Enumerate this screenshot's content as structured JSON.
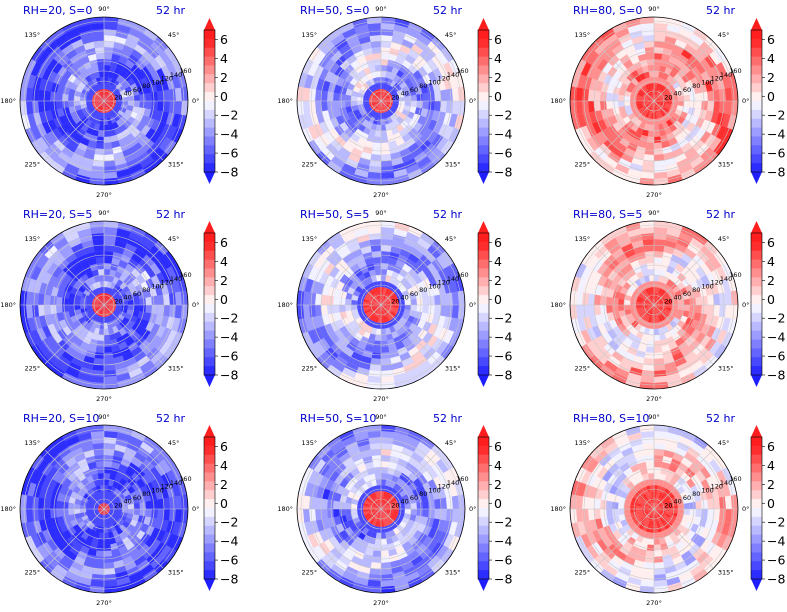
{
  "figure": {
    "panel_time": "52 hr",
    "colorbar": {
      "ticks": [
        "6",
        "4",
        "2",
        "0",
        "−2",
        "−4",
        "−6",
        "−8"
      ],
      "levels": [
        -8,
        -7,
        -6,
        -5,
        -4,
        -3,
        -2,
        -1,
        0,
        1,
        2,
        3,
        4,
        5,
        6,
        7
      ],
      "colors": {
        "negative_max": "#1e1eff",
        "positive_max": "#ff1e1e",
        "zero": "#ffffff"
      }
    },
    "polar_axes": {
      "angle_labels": [
        "90°",
        "45°",
        "0°",
        "315°",
        "270°",
        "225°",
        "180°",
        "135°"
      ],
      "radial_labels": [
        "20",
        "40",
        "60",
        "80",
        "100",
        "120",
        "140",
        "160"
      ]
    },
    "title_color": "#0000cc"
  },
  "chart_data": [
    {
      "type": "heatmap",
      "title": "RH=20, S=0",
      "time_label": "52 hr",
      "projection": "polar",
      "zlim": [
        -8,
        7
      ],
      "center_sign": "positive",
      "field_sign": "negative",
      "mean_level": -5.0,
      "core_radius": 0.12
    },
    {
      "type": "heatmap",
      "title": "RH=50, S=0",
      "time_label": "52 hr",
      "projection": "polar",
      "zlim": [
        -8,
        7
      ],
      "center_sign": "positive",
      "field_sign": "negative",
      "mean_level": -2.5,
      "core_radius": 0.16
    },
    {
      "type": "heatmap",
      "title": "RH=80, S=0",
      "time_label": "52 hr",
      "projection": "polar",
      "zlim": [
        -8,
        7
      ],
      "center_sign": "positive",
      "field_sign": "positive",
      "mean_level": 2.5,
      "core_radius": 0.2
    },
    {
      "type": "heatmap",
      "title": "RH=20, S=5",
      "time_label": "52 hr",
      "projection": "polar",
      "zlim": [
        -8,
        7
      ],
      "center_sign": "positive",
      "field_sign": "negative",
      "mean_level": -5.0,
      "core_radius": 0.12
    },
    {
      "type": "heatmap",
      "title": "RH=50, S=5",
      "time_label": "52 hr",
      "projection": "polar",
      "zlim": [
        -8,
        7
      ],
      "center_sign": "positive",
      "field_sign": "negative",
      "mean_level": -2.5,
      "core_radius": 0.18
    },
    {
      "type": "heatmap",
      "title": "RH=80, S=5",
      "time_label": "52 hr",
      "projection": "polar",
      "zlim": [
        -8,
        7
      ],
      "center_sign": "positive",
      "field_sign": "positive",
      "mean_level": 1.5,
      "core_radius": 0.22
    },
    {
      "type": "heatmap",
      "title": "RH=20, S=10",
      "time_label": "52 hr",
      "projection": "polar",
      "zlim": [
        -8,
        7
      ],
      "center_sign": "positive",
      "field_sign": "negative",
      "mean_level": -5.5,
      "core_radius": 0.1
    },
    {
      "type": "heatmap",
      "title": "RH=50, S=10",
      "time_label": "52 hr",
      "projection": "polar",
      "zlim": [
        -8,
        7
      ],
      "center_sign": "positive",
      "field_sign": "negative",
      "mean_level": -3.0,
      "core_radius": 0.24
    },
    {
      "type": "heatmap",
      "title": "RH=80, S=10",
      "time_label": "52 hr",
      "projection": "polar",
      "zlim": [
        -8,
        7
      ],
      "center_sign": "positive",
      "field_sign": "positive",
      "mean_level": 0.5,
      "core_radius": 0.26
    }
  ]
}
